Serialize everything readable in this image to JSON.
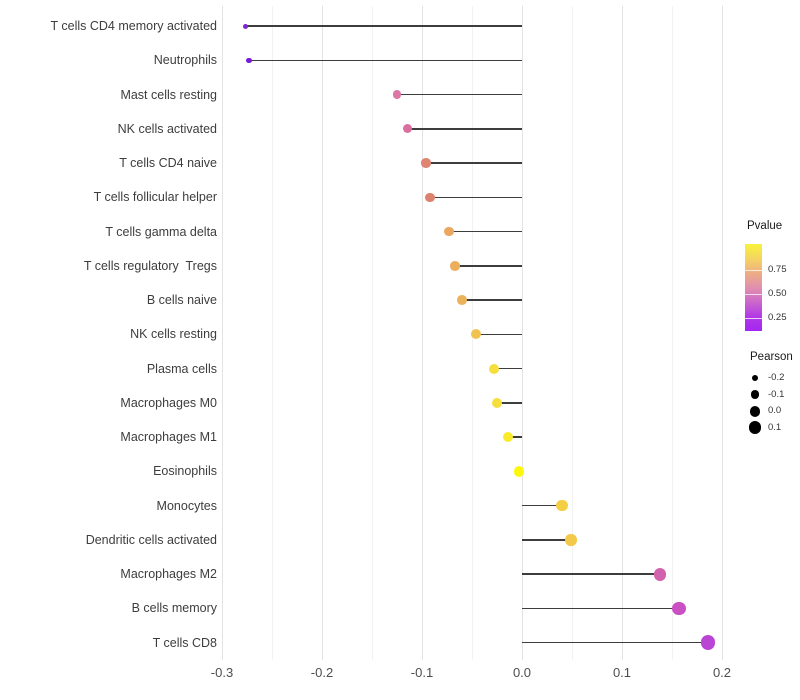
{
  "figure": {
    "background": "#ffffff"
  },
  "chart_data": {
    "type": "lollipop",
    "title": "",
    "xlabel": "",
    "ylabel": "",
    "xlim": [
      -0.303,
      0.213
    ],
    "grid": "vertical major and minor gridlines, light gray, no axis lines, white background",
    "x_major_ticks": [
      -0.3,
      -0.2,
      -0.1,
      0.0,
      0.1,
      0.2
    ],
    "x_tick_labels": [
      "-0.3",
      "-0.2",
      "-0.1",
      "0.0",
      "0.1",
      "0.2"
    ],
    "x_minor_ticks": [
      -0.25,
      -0.15,
      -0.05,
      0.05,
      0.15
    ],
    "segment_color": "#3d3d3d",
    "points": [
      {
        "label": "T cells CD4 memory activated",
        "pearson": -0.277,
        "pvalue": 0.12,
        "color": "#7d26d2",
        "size": 5.0
      },
      {
        "label": "Neutrophils",
        "pearson": -0.273,
        "pvalue": 0.1,
        "color": "#781bd8",
        "size": 5.2
      },
      {
        "label": "Mast cells resting",
        "pearson": -0.125,
        "pvalue": 0.45,
        "color": "#dc76a6",
        "size": 8.8
      },
      {
        "label": "NK cells activated",
        "pearson": -0.115,
        "pvalue": 0.43,
        "color": "#da6f9f",
        "size": 9.0
      },
      {
        "label": "T cells CD4 naive",
        "pearson": -0.096,
        "pvalue": 0.55,
        "color": "#df8573",
        "size": 9.2
      },
      {
        "label": "T cells follicular helper",
        "pearson": -0.092,
        "pvalue": 0.56,
        "color": "#de8270",
        "size": 9.2
      },
      {
        "label": "T cells gamma delta",
        "pearson": -0.073,
        "pvalue": 0.68,
        "color": "#eba75f",
        "size": 9.5
      },
      {
        "label": "T cells regulatory  Tregs",
        "pearson": -0.067,
        "pvalue": 0.7,
        "color": "#ecad5c",
        "size": 9.7
      },
      {
        "label": "B cells naive",
        "pearson": -0.06,
        "pvalue": 0.72,
        "color": "#ecb25a",
        "size": 9.8
      },
      {
        "label": "NK cells resting",
        "pearson": -0.046,
        "pvalue": 0.76,
        "color": "#f0c351",
        "size": 10.0
      },
      {
        "label": "Plasma cells",
        "pearson": -0.028,
        "pvalue": 0.88,
        "color": "#f6df3d",
        "size": 10.2
      },
      {
        "label": "Macrophages M0",
        "pearson": -0.025,
        "pvalue": 0.88,
        "color": "#f6de3e",
        "size": 10.2
      },
      {
        "label": "Macrophages M1",
        "pearson": -0.014,
        "pvalue": 0.93,
        "color": "#f9eb2c",
        "size": 10.4
      },
      {
        "label": "Eosinophils",
        "pearson": -0.003,
        "pvalue": 0.99,
        "color": "#fdf60d",
        "size": 10.5
      },
      {
        "label": "Monocytes",
        "pearson": 0.04,
        "pvalue": 0.82,
        "color": "#f4cf43",
        "size": 11.2
      },
      {
        "label": "Dendritic cells activated",
        "pearson": 0.049,
        "pvalue": 0.8,
        "color": "#f2c94a",
        "size": 11.4
      },
      {
        "label": "Macrophages M2",
        "pearson": 0.138,
        "pvalue": 0.38,
        "color": "#d162ae",
        "size": 12.8
      },
      {
        "label": "B cells memory",
        "pearson": 0.157,
        "pvalue": 0.3,
        "color": "#c94fc2",
        "size": 13.6
      },
      {
        "label": "T cells CD8",
        "pearson": 0.186,
        "pvalue": 0.22,
        "color": "#ba45d4",
        "size": 14.7
      }
    ],
    "legends": {
      "color": {
        "title": "Pvalue",
        "ticks": [
          "0.75",
          "0.50",
          "0.25"
        ],
        "gradient": [
          "#f9f23a",
          "#f5d562",
          "#eead85",
          "#e18fae",
          "#cc67cb",
          "#b23ae6",
          "#a326f2"
        ]
      },
      "size": {
        "title": "Pearson",
        "dot_color": "#000000",
        "items": [
          {
            "label": "-0.2",
            "diameter": 6.7
          },
          {
            "label": "-0.1",
            "diameter": 8.7
          },
          {
            "label": "0.0",
            "diameter": 10.7
          },
          {
            "label": "0.1",
            "diameter": 12.7
          }
        ]
      }
    }
  }
}
